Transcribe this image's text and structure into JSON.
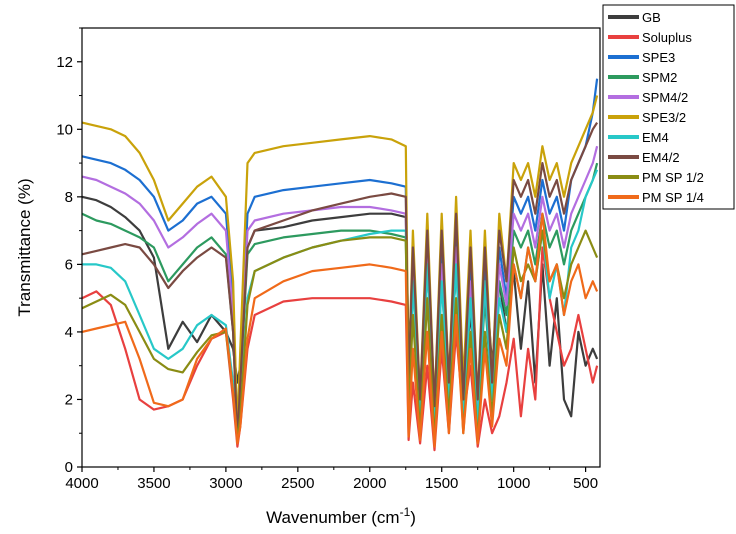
{
  "chart_data": {
    "type": "line",
    "title": "",
    "xlabel": "Wavenumber (cm",
    "xlabel_sup": "-1",
    "xlabel_end": ")",
    "ylabel": "Transmittance (%)",
    "xlim": [
      4000,
      400
    ],
    "ylim": [
      0,
      13
    ],
    "x_reversed": true,
    "x_ticks": [
      4000,
      3500,
      3000,
      2500,
      2000,
      1500,
      1000,
      500
    ],
    "y_ticks": [
      0,
      2,
      4,
      6,
      8,
      10,
      12
    ],
    "grid": false,
    "legend_position": "top-right, outside plot",
    "x": [
      4000,
      3900,
      3800,
      3700,
      3600,
      3500,
      3400,
      3300,
      3200,
      3100,
      3000,
      2950,
      2920,
      2900,
      2850,
      2800,
      2600,
      2400,
      2200,
      2000,
      1850,
      1750,
      1730,
      1700,
      1650,
      1600,
      1550,
      1500,
      1450,
      1400,
      1350,
      1300,
      1250,
      1200,
      1150,
      1100,
      1050,
      1000,
      950,
      900,
      850,
      800,
      750,
      700,
      650,
      600,
      550,
      500,
      450,
      420
    ],
    "series": [
      {
        "name": "GB",
        "color": "#3d3d3d",
        "values": [
          8.0,
          7.9,
          7.7,
          7.4,
          7.0,
          6.2,
          3.5,
          4.3,
          3.7,
          4.5,
          4.0,
          3.5,
          2.5,
          3.0,
          6.5,
          7.0,
          7.1,
          7.3,
          7.4,
          7.5,
          7.5,
          7.4,
          3.5,
          5.5,
          2.0,
          6.5,
          1.5,
          6.0,
          2.0,
          6.0,
          2.5,
          4.5,
          2.0,
          6.0,
          3.0,
          5.5,
          4.0,
          5.8,
          3.5,
          5.5,
          2.5,
          6.0,
          3.0,
          5.0,
          2.0,
          1.5,
          4.0,
          3.0,
          3.5,
          3.2
        ]
      },
      {
        "name": "Soluplus",
        "color": "#e8403f",
        "values": [
          5.0,
          5.2,
          4.8,
          3.5,
          2.0,
          1.7,
          1.8,
          2.0,
          3.0,
          3.8,
          4.0,
          2.0,
          0.6,
          1.2,
          3.5,
          4.5,
          4.9,
          5.0,
          5.0,
          5.0,
          4.9,
          4.8,
          0.8,
          2.5,
          0.7,
          3.0,
          0.5,
          3.5,
          1.0,
          4.0,
          1.5,
          3.0,
          0.6,
          2.0,
          1.0,
          1.5,
          2.5,
          3.8,
          1.5,
          3.5,
          2.0,
          6.5,
          5.0,
          4.0,
          3.0,
          3.5,
          4.5,
          3.5,
          2.5,
          3.0
        ]
      },
      {
        "name": "SPE3",
        "color": "#1c6fd1",
        "values": [
          9.2,
          9.1,
          9.0,
          8.8,
          8.5,
          8.0,
          7.0,
          7.3,
          7.8,
          8.0,
          7.5,
          5.0,
          1.0,
          3.0,
          7.5,
          8.0,
          8.2,
          8.3,
          8.4,
          8.5,
          8.4,
          8.3,
          2.0,
          6.0,
          2.0,
          6.5,
          1.5,
          6.5,
          2.5,
          7.0,
          2.0,
          6.0,
          1.5,
          6.0,
          2.0,
          6.5,
          5.0,
          8.0,
          7.5,
          8.0,
          7.0,
          8.5,
          7.5,
          8.0,
          7.0,
          8.5,
          9.0,
          9.5,
          10.5,
          11.5
        ]
      },
      {
        "name": "SPM2",
        "color": "#2d9a5f",
        "values": [
          7.5,
          7.3,
          7.2,
          7.0,
          6.8,
          6.5,
          5.5,
          6.0,
          6.5,
          6.8,
          6.3,
          4.0,
          0.8,
          2.5,
          6.3,
          6.6,
          6.8,
          6.9,
          7.0,
          7.0,
          6.9,
          6.8,
          2.0,
          5.5,
          1.5,
          6.0,
          1.2,
          5.5,
          2.0,
          6.0,
          1.8,
          5.0,
          1.3,
          5.0,
          2.0,
          5.5,
          4.5,
          7.0,
          6.5,
          7.0,
          6.0,
          7.5,
          6.5,
          7.0,
          6.0,
          7.0,
          7.5,
          8.0,
          8.5,
          9.0
        ]
      },
      {
        "name": "SPM4/2",
        "color": "#b36ee0",
        "values": [
          8.6,
          8.5,
          8.3,
          8.1,
          7.8,
          7.3,
          6.5,
          6.8,
          7.2,
          7.5,
          7.0,
          4.5,
          0.9,
          2.8,
          7.0,
          7.3,
          7.5,
          7.6,
          7.7,
          7.7,
          7.6,
          7.5,
          2.0,
          6.0,
          1.8,
          6.2,
          1.3,
          6.0,
          2.2,
          6.5,
          2.0,
          5.5,
          1.5,
          5.5,
          2.0,
          6.0,
          4.8,
          7.5,
          7.0,
          7.5,
          6.5,
          8.0,
          7.0,
          7.5,
          6.5,
          7.5,
          8.0,
          8.5,
          9.0,
          9.5
        ]
      },
      {
        "name": "SPE3/2",
        "color": "#c9a20a",
        "values": [
          10.2,
          10.1,
          10.0,
          9.8,
          9.3,
          8.5,
          7.3,
          7.8,
          8.3,
          8.6,
          8.0,
          5.5,
          1.0,
          3.5,
          9.0,
          9.3,
          9.5,
          9.6,
          9.7,
          9.8,
          9.7,
          9.5,
          2.5,
          7.0,
          2.0,
          7.5,
          1.8,
          7.5,
          2.5,
          8.0,
          2.5,
          7.0,
          2.0,
          7.0,
          2.5,
          7.5,
          5.5,
          9.0,
          8.5,
          9.0,
          8.0,
          9.5,
          8.5,
          9.0,
          8.0,
          9.0,
          9.5,
          10.0,
          10.5,
          11.0
        ]
      },
      {
        "name": "EM4",
        "color": "#27c8c8",
        "values": [
          6.0,
          6.0,
          5.9,
          5.5,
          4.5,
          3.5,
          3.2,
          3.5,
          4.2,
          4.5,
          4.2,
          2.5,
          0.8,
          1.8,
          5.0,
          5.8,
          6.2,
          6.5,
          6.7,
          6.9,
          7.0,
          7.0,
          1.5,
          5.5,
          1.5,
          6.0,
          1.0,
          5.5,
          2.0,
          6.0,
          1.5,
          5.0,
          1.2,
          5.5,
          2.0,
          5.0,
          4.0,
          6.0,
          5.0,
          6.5,
          5.5,
          7.0,
          5.0,
          6.0,
          4.5,
          6.5,
          7.0,
          8.0,
          8.5,
          8.8
        ]
      },
      {
        "name": "EM4/2",
        "color": "#7a4a42",
        "values": [
          6.3,
          6.4,
          6.5,
          6.6,
          6.5,
          6.0,
          5.3,
          5.8,
          6.2,
          6.5,
          6.2,
          4.0,
          0.8,
          2.5,
          6.5,
          7.0,
          7.3,
          7.6,
          7.8,
          8.0,
          8.1,
          8.0,
          2.5,
          6.5,
          2.0,
          7.0,
          1.8,
          7.0,
          2.5,
          7.5,
          2.0,
          6.5,
          2.0,
          6.5,
          2.5,
          7.0,
          5.5,
          8.5,
          8.0,
          8.5,
          7.5,
          9.0,
          8.0,
          8.5,
          7.5,
          8.5,
          9.0,
          9.5,
          10.0,
          10.2
        ]
      },
      {
        "name": "PM SP 1/2",
        "color": "#8a8c14",
        "values": [
          4.7,
          4.9,
          5.1,
          4.8,
          4.0,
          3.2,
          2.9,
          2.8,
          3.4,
          3.9,
          4.0,
          2.2,
          0.8,
          1.5,
          4.8,
          5.8,
          6.2,
          6.5,
          6.7,
          6.8,
          6.8,
          6.7,
          1.5,
          4.5,
          1.0,
          5.0,
          0.8,
          4.5,
          1.5,
          5.0,
          1.0,
          4.0,
          0.8,
          4.0,
          1.5,
          4.5,
          3.5,
          6.5,
          5.5,
          6.0,
          5.5,
          7.0,
          5.5,
          6.0,
          5.0,
          6.0,
          6.5,
          7.0,
          6.5,
          6.2
        ]
      },
      {
        "name": "PM SP 1/4",
        "color": "#f06a1a",
        "values": [
          4.0,
          4.1,
          4.2,
          4.3,
          3.2,
          1.9,
          1.8,
          2.0,
          3.2,
          3.8,
          4.1,
          2.2,
          0.7,
          1.2,
          3.8,
          5.0,
          5.5,
          5.8,
          5.9,
          6.0,
          5.9,
          5.8,
          0.9,
          3.5,
          0.8,
          4.0,
          0.6,
          4.0,
          1.0,
          4.5,
          1.0,
          3.5,
          0.7,
          3.5,
          1.2,
          3.8,
          3.0,
          6.0,
          5.0,
          6.5,
          5.5,
          7.5,
          5.5,
          6.0,
          4.5,
          5.5,
          6.0,
          5.0,
          5.5,
          5.2
        ]
      }
    ]
  }
}
